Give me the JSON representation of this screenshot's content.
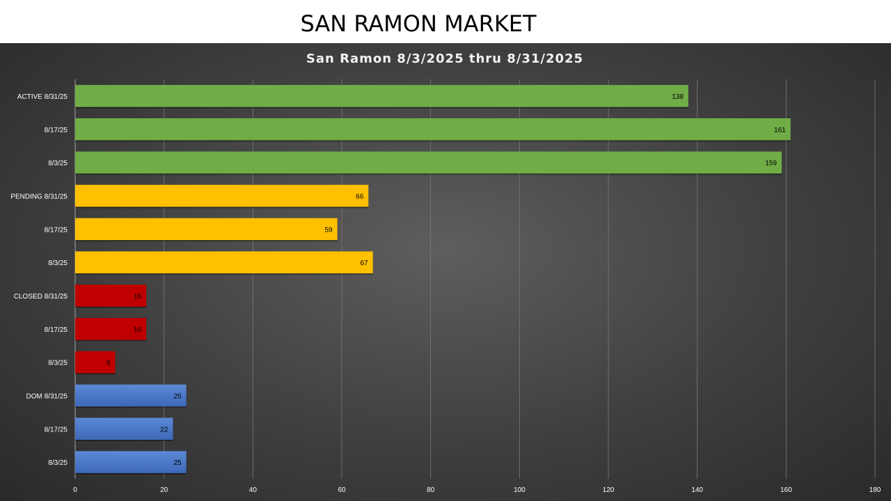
{
  "page": {
    "title": "SAN RAMON MARKET"
  },
  "chart_data": {
    "type": "bar",
    "orientation": "horizontal",
    "title": "San Ramon 8/3/2025 thru 8/31/2025",
    "xlabel": "",
    "ylabel": "",
    "xlim": [
      0,
      180
    ],
    "x_ticks": [
      0,
      20,
      40,
      60,
      80,
      100,
      120,
      140,
      160,
      180
    ],
    "grid": "vertical",
    "legend": "none",
    "categories": [
      "ACTIVE 8/31/25",
      "8/17/25",
      "8/3/25",
      "PENDING 8/31/25",
      "8/17/25",
      "8/3/25",
      "CLOSED 8/31/25",
      "8/17/25",
      "8/3/25",
      "DOM 8/31/25",
      "8/17/25",
      "8/3/25"
    ],
    "values": [
      138,
      161,
      159,
      66,
      59,
      67,
      16,
      16,
      9,
      25,
      22,
      25
    ],
    "bar_colors": [
      "#70ad47",
      "#70ad47",
      "#70ad47",
      "#ffc000",
      "#ffc000",
      "#ffc000",
      "#c00000",
      "#c00000",
      "#c00000",
      "#4472c4",
      "#4472c4",
      "#4472c4"
    ]
  }
}
